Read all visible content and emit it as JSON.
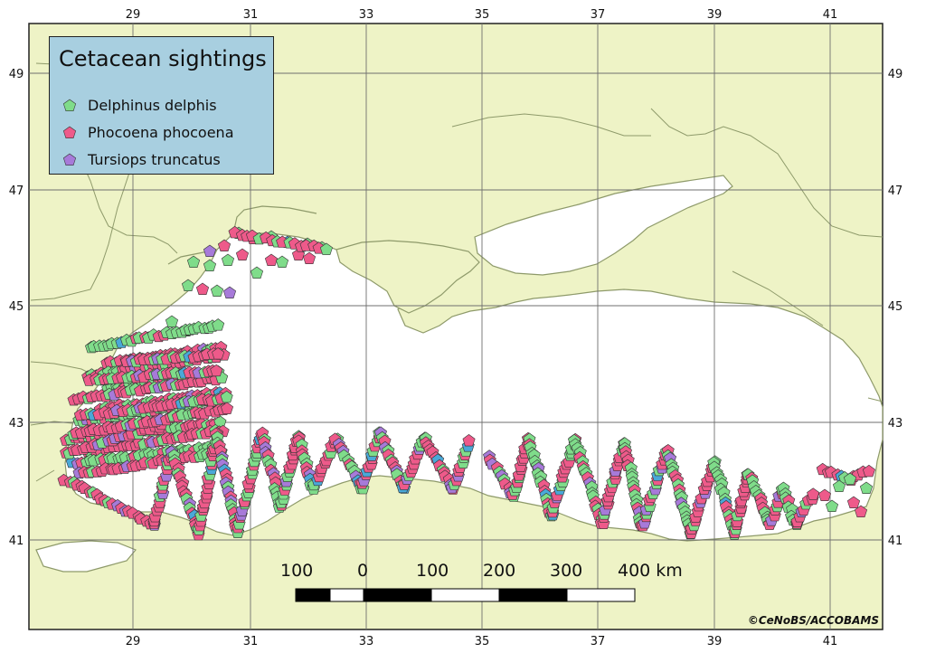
{
  "map": {
    "lon_ticks": [
      "29",
      "31",
      "33",
      "35",
      "37",
      "39",
      "41"
    ],
    "lat_ticks": [
      "49",
      "47",
      "45",
      "43",
      "41"
    ],
    "colors": {
      "land": "#eef3c6",
      "sea": "#ffffff",
      "grid": "#6f6f6f",
      "coast": "#8e9a6a"
    }
  },
  "legend": {
    "title": "Cetacean sightings",
    "items": [
      {
        "label": "Delphinus delphis",
        "color": "#7fdc8a"
      },
      {
        "label": "Phocoena phocoena",
        "color": "#ee5a8a"
      },
      {
        "label": "Tursiops truncatus",
        "color": "#a77ad9"
      }
    ]
  },
  "scalebar": {
    "labels": [
      "100",
      "0",
      "100",
      "200",
      "300",
      "400 km"
    ]
  },
  "credit": "©CeNoBS/ACCOBAMS",
  "colors": {
    "delphinus": "#7fdc8a",
    "phocoena": "#ee5a8a",
    "tursiops": "#a77ad9",
    "extra": "#4aa8d8"
  }
}
